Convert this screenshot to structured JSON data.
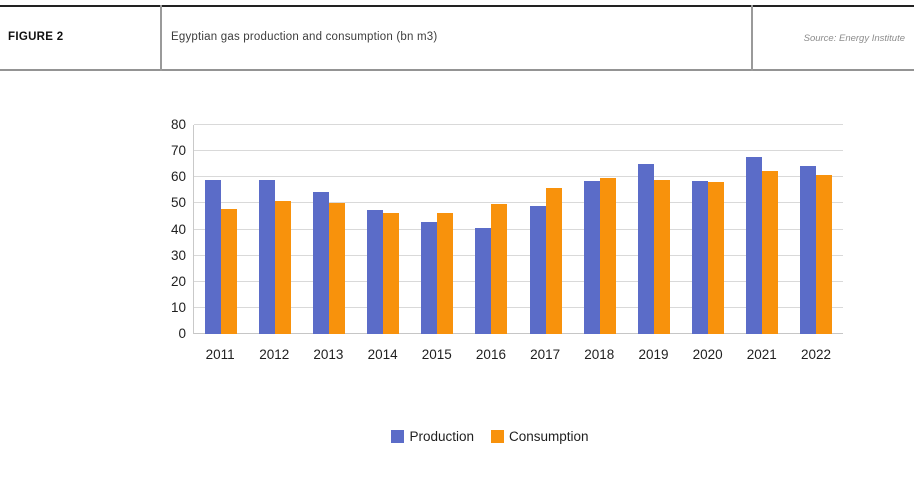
{
  "header": {
    "figure_label": "FIGURE 2",
    "title": "Egyptian gas production and consumption (bn m3)",
    "source": "Source: Energy Institute"
  },
  "colors": {
    "production": "#5B6CC8",
    "consumption": "#F8920C",
    "gridline": "#D9D9D9",
    "axis_line": "#C9C9C9",
    "axis_text": "#1F1F1F",
    "header_top_rule": "#222222",
    "header_bottom_rule": "#949494"
  },
  "chart_data": {
    "type": "bar",
    "title": "Egyptian gas production and consumption (bn m3)",
    "categories": [
      "2011",
      "2012",
      "2013",
      "2014",
      "2015",
      "2016",
      "2017",
      "2018",
      "2019",
      "2020",
      "2021",
      "2022"
    ],
    "series": [
      {
        "name": "Production",
        "color": "#5B6CC8",
        "values": [
          59.0,
          58.8,
          54.2,
          47.4,
          42.8,
          40.5,
          49.0,
          58.5,
          65.0,
          58.4,
          67.8,
          64.5
        ]
      },
      {
        "name": "Consumption",
        "color": "#F8920C",
        "values": [
          48.0,
          50.9,
          50.0,
          46.5,
          46.3,
          49.8,
          55.8,
          59.6,
          58.8,
          58.0,
          62.3,
          60.7
        ]
      }
    ],
    "xlabel": "",
    "ylabel": "",
    "ylim": [
      0,
      80
    ],
    "yticks": [
      0,
      10,
      20,
      30,
      40,
      50,
      60,
      70,
      80
    ],
    "grid": true,
    "legend_position": "bottom"
  }
}
